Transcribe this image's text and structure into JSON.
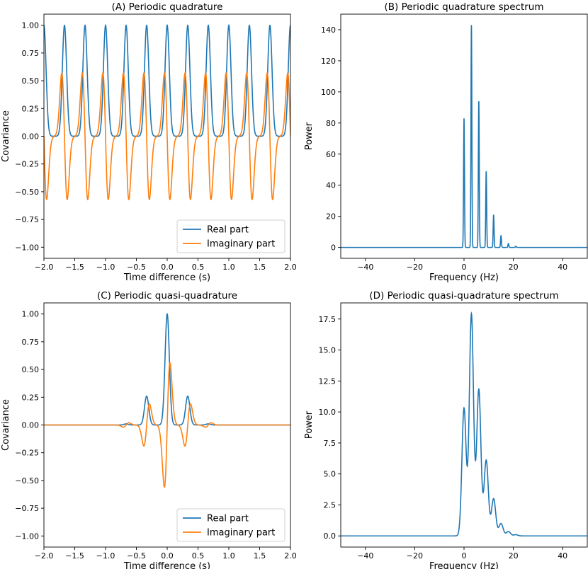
{
  "chart_data": [
    {
      "id": "A",
      "type": "line",
      "title": "(A) Periodic quadrature",
      "xlabel": "Time difference (s)",
      "ylabel": "Covariance",
      "xlim": [
        -2.0,
        2.0
      ],
      "ylim": [
        -1.1,
        1.1
      ],
      "xticks": [
        -2.0,
        -1.5,
        -1.0,
        -0.5,
        0.0,
        0.5,
        1.0,
        1.5,
        2.0
      ],
      "xtick_labels": [
        "−2.0",
        "−1.5",
        "−1.0",
        "−0.5",
        "0.0",
        "0.5",
        "1.0",
        "1.5",
        "2.0"
      ],
      "yticks": [
        -1.0,
        -0.75,
        -0.5,
        -0.25,
        0.0,
        0.25,
        0.5,
        0.75,
        1.0
      ],
      "ytick_labels": [
        "−1.00",
        "−0.75",
        "−0.50",
        "−0.25",
        "0.00",
        "0.25",
        "0.50",
        "0.75",
        "1.00"
      ],
      "legend": "lower-right",
      "grid": false,
      "series": [
        {
          "name": "Real part",
          "color": "#1f77b4",
          "model": "periodic_real",
          "period": 0.3333,
          "peak": 1.0,
          "width": 0.035
        },
        {
          "name": "Imaginary part",
          "color": "#ff7f0e",
          "model": "periodic_imag",
          "period": 0.3333,
          "peak": 0.57,
          "trough": -0.57,
          "width": 0.035
        }
      ]
    },
    {
      "id": "B",
      "type": "line",
      "title": "(B) Periodic quadrature spectrum",
      "xlabel": "Frequency (Hz)",
      "ylabel": "Power",
      "xlim": [
        -50,
        50
      ],
      "ylim": [
        -7,
        150
      ],
      "xticks": [
        -40,
        -20,
        0,
        20,
        40
      ],
      "xtick_labels": [
        "−40",
        "−20",
        "0",
        "20",
        "40"
      ],
      "yticks": [
        0,
        20,
        40,
        60,
        80,
        100,
        120,
        140
      ],
      "ytick_labels": [
        "0",
        "20",
        "40",
        "60",
        "80",
        "100",
        "120",
        "140"
      ],
      "grid": false,
      "series": [
        {
          "color": "#1f77b4",
          "model": "spikes",
          "x": [
            0,
            3,
            6,
            9,
            12,
            15,
            18,
            21
          ],
          "y": [
            83,
            143,
            94,
            49,
            21,
            7.5,
            2.5,
            0.8
          ]
        }
      ]
    },
    {
      "id": "C",
      "type": "line",
      "title": "(C) Periodic quasi-quadrature",
      "xlabel": "Time difference (s)",
      "ylabel": "Covariance",
      "xlim": [
        -2.0,
        2.0
      ],
      "ylim": [
        -1.1,
        1.1
      ],
      "xticks": [
        -2.0,
        -1.5,
        -1.0,
        -0.5,
        0.0,
        0.5,
        1.0,
        1.5,
        2.0
      ],
      "xtick_labels": [
        "−2.0",
        "−1.5",
        "−1.0",
        "−0.5",
        "0.0",
        "0.5",
        "1.0",
        "1.5",
        "2.0"
      ],
      "yticks": [
        -1.0,
        -0.75,
        -0.5,
        -0.25,
        0.0,
        0.25,
        0.5,
        0.75,
        1.0
      ],
      "ytick_labels": [
        "−1.00",
        "−0.75",
        "−0.50",
        "−0.25",
        "0.00",
        "0.25",
        "0.50",
        "0.75",
        "1.00"
      ],
      "legend": "lower-right",
      "grid": false,
      "series": [
        {
          "name": "Real part",
          "color": "#1f77b4",
          "model": "quasi_real",
          "period": 0.3333,
          "peaks": [
            1.0,
            0.26,
            0.26
          ]
        },
        {
          "name": "Imaginary part",
          "color": "#ff7f0e",
          "model": "quasi_imag",
          "period": 0.3333,
          "peak": 0.56,
          "trough": -0.56,
          "side_peak": 0.19,
          "side_trough": -0.19
        }
      ]
    },
    {
      "id": "D",
      "type": "line",
      "title": "(D) Periodic quasi-quadrature spectrum",
      "xlabel": "Frequency (Hz)",
      "ylabel": "Power",
      "xlim": [
        -50,
        50
      ],
      "ylim": [
        -0.9,
        18.8
      ],
      "xticks": [
        -40,
        -20,
        0,
        20,
        40
      ],
      "xtick_labels": [
        "−40",
        "−20",
        "0",
        "20",
        "40"
      ],
      "yticks": [
        0.0,
        2.5,
        5.0,
        7.5,
        10.0,
        12.5,
        15.0,
        17.5
      ],
      "ytick_labels": [
        "0.0",
        "2.5",
        "5.0",
        "7.5",
        "10.0",
        "12.5",
        "15.0",
        "17.5"
      ],
      "grid": false,
      "series": [
        {
          "color": "#1f77b4",
          "model": "smooth_peaks",
          "x": [
            0,
            3,
            6,
            9,
            12,
            15,
            18,
            21
          ],
          "y": [
            10.3,
            17.9,
            11.8,
            6.1,
            3.0,
            1.0,
            0.35,
            0.1
          ]
        }
      ]
    }
  ]
}
